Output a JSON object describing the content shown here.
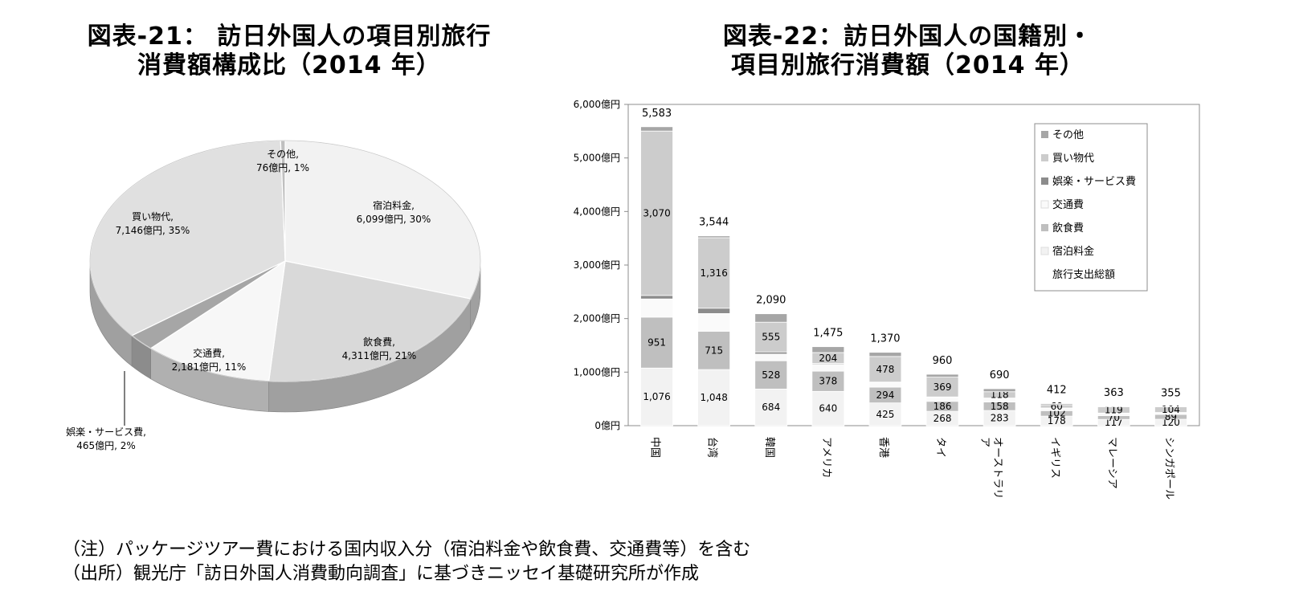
{
  "pie_title": {
    "line1": "図表-21： 訪日外国人の項目別旅行",
    "line2": "消費額構成比（2014 年）"
  },
  "bar_title": {
    "line1": "図表-22：訪日外国人の国籍別・",
    "line2": "項目別旅行消費額（2014 年）"
  },
  "notes": {
    "note": "（注）パッケージツアー費における国内収入分（宿泊料金や飲食費、交通費等）を含む",
    "source": "（出所）観光庁「訪日外国人消費動向調査」に基づきニッセイ基礎研究所が作成"
  },
  "chart_data": [
    {
      "type": "pie",
      "title": "図表-21： 訪日外国人の項目別旅行消費額構成比（2014 年）",
      "slices": [
        {
          "label": "宿泊料金",
          "value": 6099,
          "percent": 30,
          "text": "6,099億円, 30%",
          "color": "#f2f2f2"
        },
        {
          "label": "飲食費",
          "value": 4311,
          "percent": 21,
          "text": "4,311億円, 21%",
          "color": "#d9d9d9"
        },
        {
          "label": "交通費",
          "value": 2181,
          "percent": 11,
          "text": "2,181億円, 11%",
          "color": "#f7f7f7"
        },
        {
          "label": "娯楽・サービス費",
          "value": 465,
          "percent": 2,
          "text": "465億円, 2%",
          "color": "#a6a6a6"
        },
        {
          "label": "買い物代",
          "value": 7146,
          "percent": 35,
          "text": "7,146億円, 35%",
          "color": "#e0e0e0"
        },
        {
          "label": "その他",
          "value": 76,
          "percent": 1,
          "text": "76億円, 1%",
          "color": "#bfbfbf"
        }
      ]
    },
    {
      "type": "bar",
      "stacked": true,
      "title": "図表-22：訪日外国人の国籍別・項目別旅行消費額（2014 年）",
      "categories": [
        "中国",
        "台湾",
        "韓国",
        "アメリカ",
        "香港",
        "タイ",
        "オーストラリア",
        "イギリス",
        "マレーシア",
        "シンガポール"
      ],
      "category_lines": [
        [
          "中国"
        ],
        [
          "台湾"
        ],
        [
          "韓国"
        ],
        [
          "アメリカ"
        ],
        [
          "香港"
        ],
        [
          "タイ"
        ],
        [
          "オーストラリ",
          "ア"
        ],
        [
          "イギリス"
        ],
        [
          "マレーシア"
        ],
        [
          "シンガポール"
        ]
      ],
      "yticks": [
        "0億円",
        "1,000億円",
        "2,000億円",
        "3,000億円",
        "4,000億円",
        "5,000億円",
        "6,000億円"
      ],
      "ylim": [
        0,
        6000
      ],
      "series": [
        {
          "name": "宿泊料金",
          "color": "#f2f2f2",
          "values": [
            1076,
            1048,
            684,
            640,
            425,
            268,
            283,
            178,
            117,
            120
          ]
        },
        {
          "name": "飲食費",
          "color": "#bfbfbf",
          "values": [
            951,
            715,
            528,
            378,
            294,
            186,
            158,
            102,
            70,
            89
          ]
        },
        {
          "name": "交通費",
          "color": "#fafafa",
          "values": [
            340,
            331,
            125,
            127,
            85,
            73,
            67,
            44,
            43,
            33
          ]
        },
        {
          "name": "娯楽・サービス費",
          "color": "#8c8c8c",
          "values": [
            65,
            100,
            40,
            16,
            10,
            10,
            8,
            6,
            5,
            5
          ]
        },
        {
          "name": "買い物代",
          "color": "#cccccc",
          "values": [
            3070,
            1316,
            555,
            204,
            478,
            369,
            118,
            60,
            119,
            104
          ]
        },
        {
          "name": "その他",
          "color": "#a6a6a6",
          "values": [
            81,
            34,
            158,
            110,
            78,
            54,
            56,
            22,
            9,
            4
          ]
        }
      ],
      "labeled_series": [
        "宿泊料金",
        "飲食費",
        "買い物代"
      ],
      "totals": [
        5583,
        3544,
        2090,
        1475,
        1370,
        960,
        690,
        412,
        363,
        355
      ],
      "total_labels": [
        "5,583",
        "3,544",
        "2,090",
        "1,475",
        "1,370",
        "960",
        "690",
        "412",
        "363",
        "355"
      ],
      "legend": {
        "placement": "top-right",
        "order": [
          "その他",
          "買い物代",
          "娯楽・サービス費",
          "交通費",
          "飲食費",
          "宿泊料金",
          "旅行支出総額"
        ],
        "markers": {
          "その他": "#a6a6a6",
          "買い物代": "#cccccc",
          "娯楽・サービス費": "#8c8c8c",
          "交通費": "#fafafa",
          "飲食費": "#bfbfbf",
          "宿泊料金": "#f2f2f2",
          "旅行支出総額": "none"
        }
      }
    }
  ]
}
